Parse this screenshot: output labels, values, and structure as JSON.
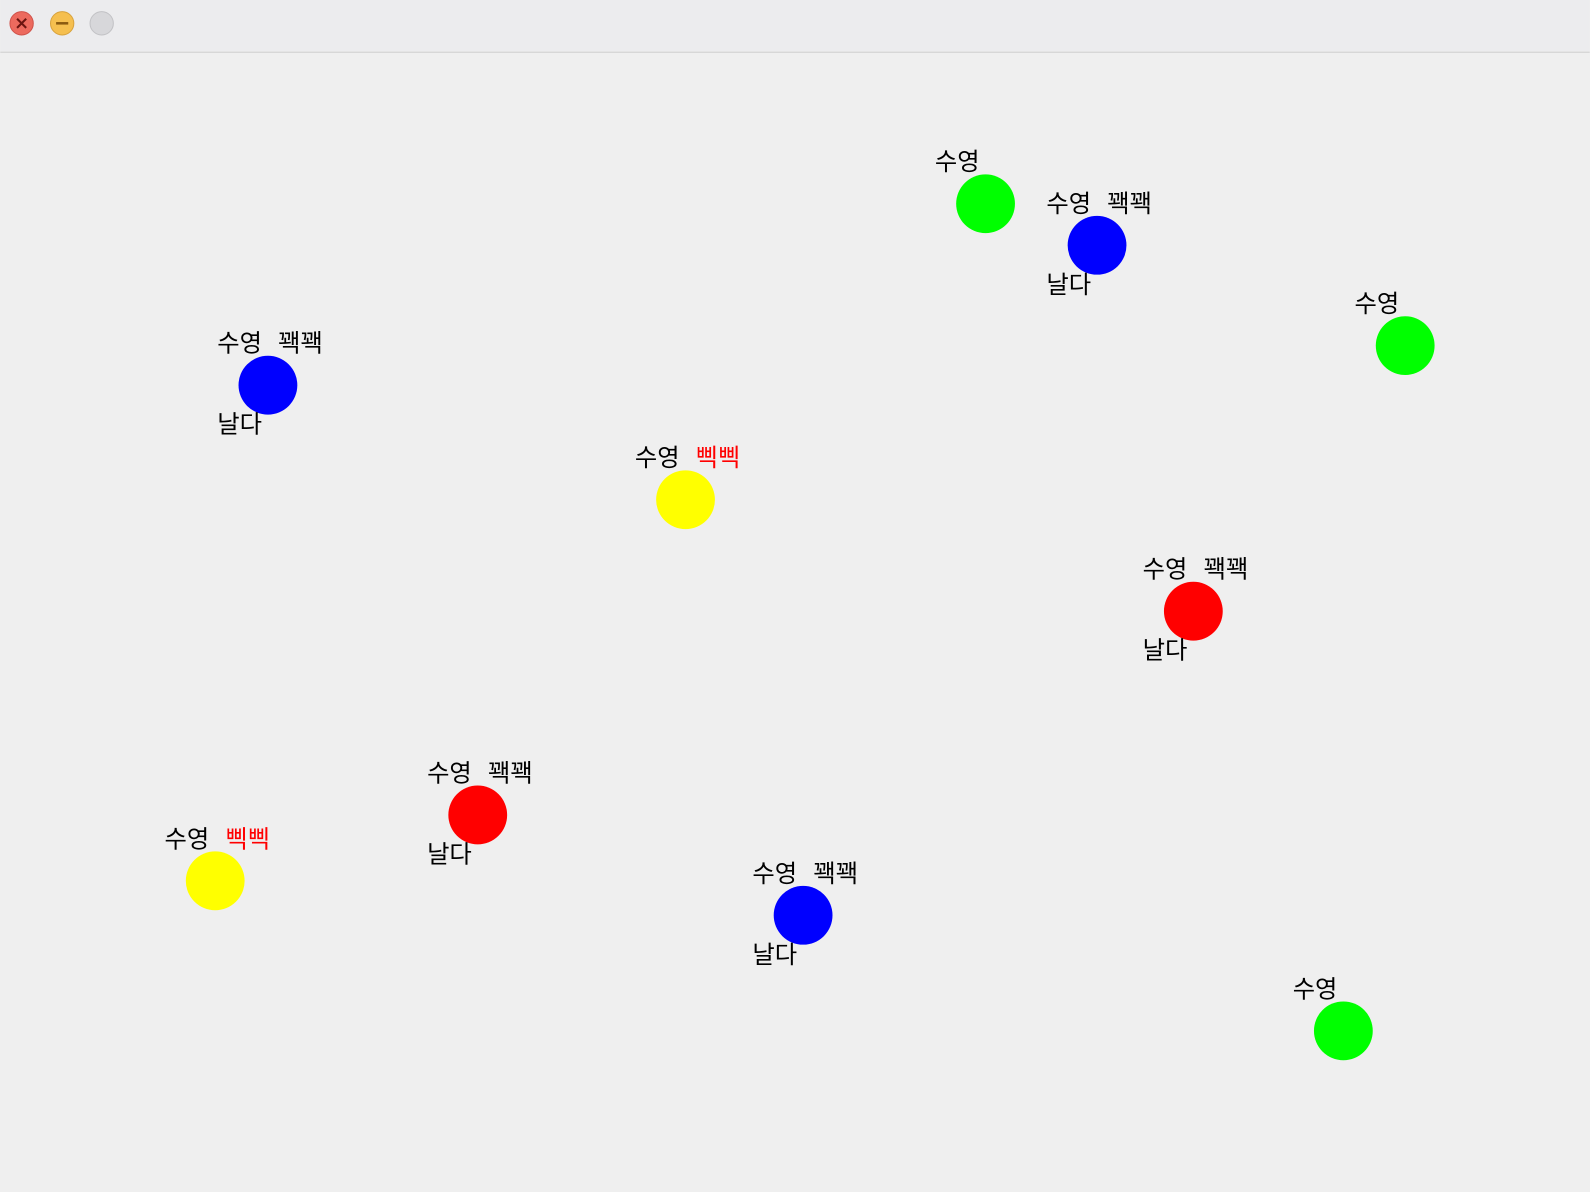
{
  "window": {
    "entities": [
      {
        "color": "#00ff00",
        "swim": "수영"
      },
      {
        "color": "#0000ff",
        "swim": "수영",
        "sound": {
          "text": "꽥꽥",
          "color": "#000000"
        },
        "fly": "날다"
      },
      {
        "color": "#00ff00",
        "swim": "수영"
      },
      {
        "color": "#0000ff",
        "swim": "수영",
        "sound": {
          "text": "꽥꽥",
          "color": "#000000"
        },
        "fly": "날다"
      },
      {
        "color": "#ffff00",
        "swim": "수영",
        "sound": {
          "text": "삑삑",
          "color": "#ff0000"
        }
      },
      {
        "color": "#ff0000",
        "swim": "수영",
        "sound": {
          "text": "꽥꽥",
          "color": "#000000"
        },
        "fly": "날다"
      },
      {
        "color": "#ff0000",
        "swim": "수영",
        "sound": {
          "text": "꽥꽥",
          "color": "#000000"
        },
        "fly": "날다"
      },
      {
        "color": "#ffff00",
        "swim": "수영",
        "sound": {
          "text": "삑삑",
          "color": "#ff0000"
        }
      },
      {
        "color": "#0000ff",
        "swim": "수영",
        "sound": {
          "text": "꽥꽥",
          "color": "#000000"
        },
        "fly": "날다"
      },
      {
        "color": "#00ff00",
        "swim": "수영"
      }
    ]
  }
}
